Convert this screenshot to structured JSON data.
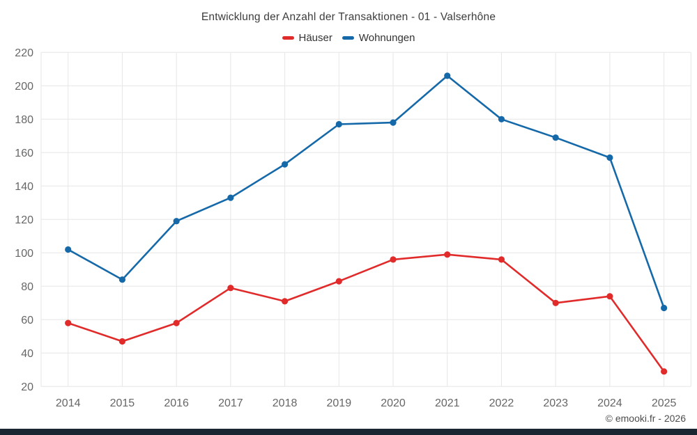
{
  "title": "Entwicklung der Anzahl der Transaktionen - 01 - Valserhône",
  "legend": [
    {
      "label": "Häuser",
      "color": "#e12b2b"
    },
    {
      "label": "Wohnungen",
      "color": "#1569a9"
    }
  ],
  "footer": "© emooki.fr - 2026",
  "colors": {
    "haeuser": "#e12b2b",
    "wohnungen": "#1569a9",
    "grid": "#e6e6e6",
    "axis_label": "#666666",
    "title_text": "#3c3c3c",
    "bottom_bar": "#1a2733"
  },
  "chart_data": {
    "type": "line",
    "title": "Entwicklung der Anzahl der Transaktionen - 01 - Valserhône",
    "x": [
      2014,
      2015,
      2016,
      2017,
      2018,
      2019,
      2020,
      2021,
      2022,
      2023,
      2024,
      2025
    ],
    "series": [
      {
        "name": "Häuser",
        "color": "#e12b2b",
        "values": [
          58,
          47,
          58,
          79,
          71,
          83,
          96,
          99,
          96,
          70,
          74,
          29
        ]
      },
      {
        "name": "Wohnungen",
        "color": "#1569a9",
        "values": [
          102,
          84,
          119,
          133,
          153,
          177,
          178,
          206,
          180,
          169,
          157,
          67
        ]
      }
    ],
    "xlabel": "",
    "ylabel": "",
    "ylim": [
      20,
      220
    ],
    "ytick_step": 20,
    "grid": true,
    "legend_position": "top"
  }
}
